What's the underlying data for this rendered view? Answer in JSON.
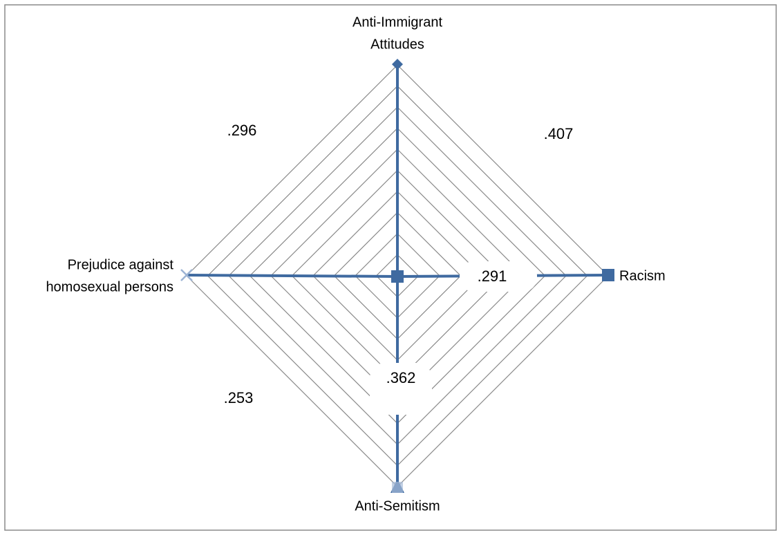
{
  "nodes": [
    {
      "label": [
        "Anti-Immigrant",
        "Attitudes"
      ]
    },
    {
      "label": [
        "Racism"
      ]
    },
    {
      "label": [
        "Anti-Semitism"
      ]
    },
    {
      "label": [
        "Prejudice against",
        "homosexual persons"
      ]
    }
  ],
  "correlations": [
    {
      "between": [
        "Anti-Immigrant Attitudes",
        "Racism"
      ],
      "label": ".407"
    },
    {
      "between": [
        "Anti-Immigrant Attitudes",
        "Prejudice against homosexual persons"
      ],
      "label": ".296"
    },
    {
      "between": [
        "Anti-Semitism",
        "Prejudice against homosexual persons"
      ],
      "label": ".253"
    },
    {
      "between": [
        "Racism",
        "Prejudice against homosexual persons"
      ],
      "label": ".291"
    },
    {
      "between": [
        "Anti-Immigrant Attitudes",
        "Anti-Semitism"
      ],
      "label": ".362"
    }
  ]
}
